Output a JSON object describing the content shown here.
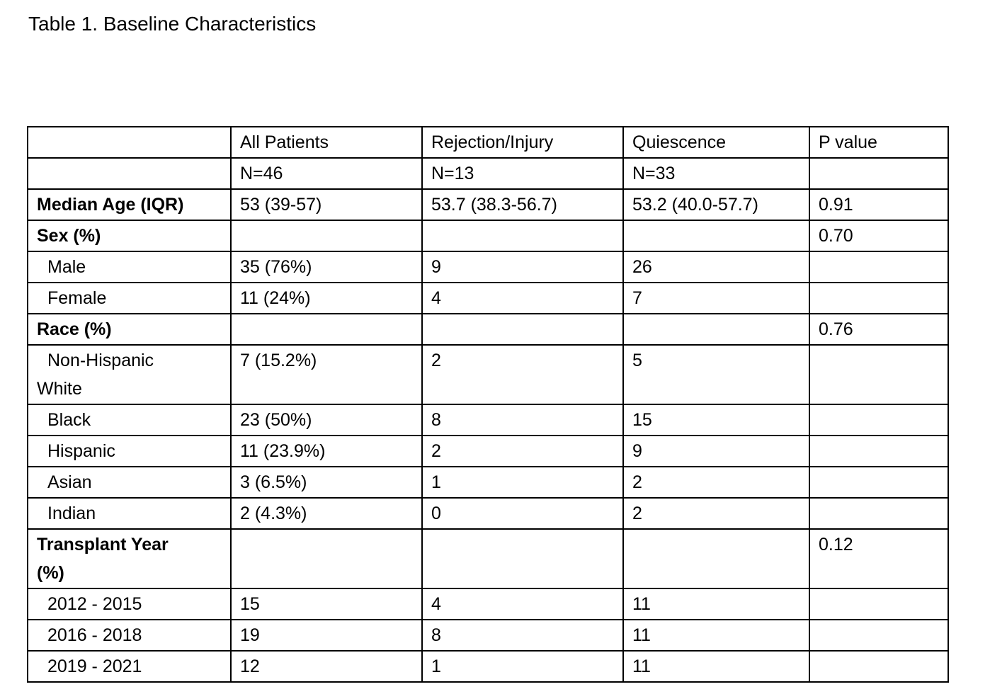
{
  "title": "Table 1. Baseline Characteristics",
  "table": {
    "columns": [
      "",
      "All Patients",
      "Rejection/Injury",
      "Quiescence",
      "P value"
    ],
    "subheader": [
      "",
      "N=46",
      "N=13",
      "N=33",
      ""
    ],
    "rows": [
      {
        "label": "Median Age (IQR)",
        "all": "53 (39-57)",
        "rejection": "53.7 (38.3-56.7)",
        "quiescence": "53.2 (40.0-57.7)",
        "p": "0.91"
      },
      {
        "label": "Sex (%)",
        "all": "",
        "rejection": "",
        "quiescence": "",
        "p": "0.70"
      },
      {
        "label": "Male",
        "all": "35 (76%)",
        "rejection": "9",
        "quiescence": "26",
        "p": ""
      },
      {
        "label": "Female",
        "all": "11 (24%)",
        "rejection": "4",
        "quiescence": "7",
        "p": ""
      },
      {
        "label": "Race (%)",
        "all": "",
        "rejection": "",
        "quiescence": "",
        "p": "0.76"
      },
      {
        "label": "Non-Hispanic\nWhite",
        "all": "7 (15.2%)",
        "rejection": "2",
        "quiescence": "5",
        "p": ""
      },
      {
        "label": "Black",
        "all": "23 (50%)",
        "rejection": "8",
        "quiescence": "15",
        "p": ""
      },
      {
        "label": "Hispanic",
        "all": "11 (23.9%)",
        "rejection": "2",
        "quiescence": "9",
        "p": ""
      },
      {
        "label": "Asian",
        "all": "3 (6.5%)",
        "rejection": "1",
        "quiescence": "2",
        "p": ""
      },
      {
        "label": "Indian",
        "all": "2 (4.3%)",
        "rejection": "0",
        "quiescence": "2",
        "p": ""
      },
      {
        "label": "Transplant Year\n(%)",
        "all": "",
        "rejection": "",
        "quiescence": "",
        "p": "0.12"
      },
      {
        "label": "2012 - 2015",
        "all": "15",
        "rejection": "4",
        "quiescence": "11",
        "p": ""
      },
      {
        "label": "2016 - 2018",
        "all": "19",
        "rejection": "8",
        "quiescence": "11",
        "p": ""
      },
      {
        "label": "2019 - 2021",
        "all": "12",
        "rejection": "1",
        "quiescence": "11",
        "p": ""
      }
    ]
  }
}
